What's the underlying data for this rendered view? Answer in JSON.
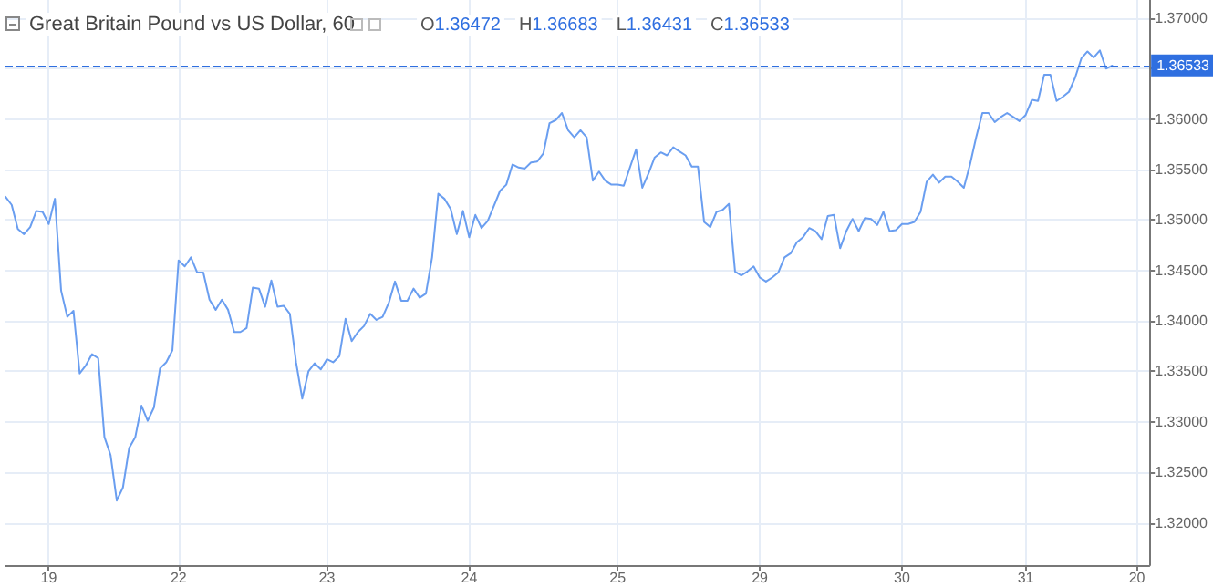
{
  "chart_data": {
    "type": "line",
    "title": "Great Britain Pound vs US Dollar, 60",
    "annotations": [
      "O1.36472",
      "H1.36683",
      "L1.36431",
      "C1.36533"
    ],
    "color": "#6a9ef0",
    "marker": "none",
    "grid": true,
    "categories": [
      null,
      null,
      null,
      null,
      null,
      null,
      null,
      "19",
      null,
      null,
      null,
      null,
      null,
      null,
      null,
      null,
      null,
      null,
      null,
      null,
      null,
      null,
      null,
      null,
      null,
      null,
      null,
      null,
      "22",
      null,
      null,
      null,
      null,
      null,
      null,
      null,
      null,
      null,
      null,
      null,
      null,
      null,
      null,
      null,
      null,
      null,
      null,
      null,
      null,
      null,
      null,
      null,
      "23",
      null,
      null,
      null,
      null,
      null,
      null,
      null,
      null,
      null,
      null,
      null,
      null,
      null,
      null,
      null,
      null,
      null,
      null,
      null,
      null,
      null,
      null,
      "24",
      null,
      null,
      null,
      null,
      null,
      null,
      null,
      null,
      null,
      null,
      null,
      null,
      null,
      null,
      null,
      null,
      null,
      null,
      null,
      null,
      null,
      null,
      null,
      "25",
      null,
      null,
      null,
      null,
      null,
      null,
      null,
      null,
      null,
      null,
      null,
      null,
      null,
      null,
      null,
      null,
      null,
      null,
      null,
      null,
      null,
      null,
      "29",
      null,
      null,
      null,
      null,
      null,
      null,
      null,
      null,
      null,
      null,
      null,
      null,
      null,
      null,
      null,
      null,
      null,
      null,
      null,
      null,
      null,
      null,
      "30",
      null,
      null,
      null,
      null,
      null,
      null,
      null,
      null,
      null,
      null,
      null,
      null,
      null,
      null,
      null,
      null,
      null,
      null,
      null,
      "31",
      null,
      null,
      null,
      null,
      null,
      null,
      null,
      null,
      null,
      null,
      null,
      null,
      null,
      null,
      null,
      null,
      null,
      "20",
      null,
      null
    ],
    "ylim": [
      1.3158,
      1.3718
    ],
    "yticks": [
      {
        "value": 1.32,
        "label": "1.32000"
      },
      {
        "value": 1.325,
        "label": "1.32500"
      },
      {
        "value": 1.33,
        "label": "1.33000"
      },
      {
        "value": 1.335,
        "label": "1.33500"
      },
      {
        "value": 1.34,
        "label": "1.34000"
      },
      {
        "value": 1.345,
        "label": "1.34500"
      },
      {
        "value": 1.35,
        "label": "1.35000"
      },
      {
        "value": 1.355,
        "label": "1.35500"
      },
      {
        "value": 1.36,
        "label": "1.36000"
      },
      {
        "value": 1.365,
        "label": null
      },
      {
        "value": 1.37,
        "label": "1.37000"
      }
    ],
    "ref_lines": [
      {
        "axis": "y",
        "value": 1.36533,
        "label": "1.36533",
        "color": "#2f6fe0",
        "line_style": "dashed"
      }
    ],
    "values": [
      1.3523,
      1.3515,
      1.3491,
      1.3486,
      1.3493,
      1.3509,
      1.3508,
      1.3496,
      1.3521,
      1.343,
      1.3404,
      1.341,
      1.3348,
      1.3356,
      1.3367,
      1.3363,
      1.3285,
      1.3267,
      1.3222,
      1.3235,
      1.3274,
      1.3285,
      1.3316,
      1.3301,
      1.3314,
      1.3353,
      1.3359,
      1.3371,
      1.346,
      1.3454,
      1.3463,
      1.3448,
      1.3448,
      1.3421,
      1.3411,
      1.3421,
      1.3411,
      1.3389,
      1.3389,
      1.3393,
      1.3433,
      1.3432,
      1.3414,
      1.344,
      1.3414,
      1.3415,
      1.3407,
      1.3359,
      1.3323,
      1.335,
      1.3358,
      1.3352,
      1.3362,
      1.3359,
      1.3365,
      1.3402,
      1.338,
      1.3389,
      1.3395,
      1.3407,
      1.3401,
      1.3404,
      1.3418,
      1.3439,
      1.342,
      1.342,
      1.3432,
      1.3423,
      1.3427,
      1.3463,
      1.3526,
      1.3521,
      1.3511,
      1.3486,
      1.3509,
      1.3483,
      1.3505,
      1.3492,
      1.3499,
      1.3514,
      1.3529,
      1.3535,
      1.3555,
      1.3552,
      1.3551,
      1.3557,
      1.3558,
      1.3566,
      1.3596,
      1.3599,
      1.3606,
      1.3589,
      1.3582,
      1.3589,
      1.3582,
      1.3539,
      1.3548,
      1.3539,
      1.3535,
      1.3535,
      1.3534,
      1.3552,
      1.357,
      1.3532,
      1.3546,
      1.3562,
      1.3567,
      1.3564,
      1.3572,
      1.3568,
      1.3564,
      1.3553,
      1.3553,
      1.3498,
      1.3493,
      1.3508,
      1.351,
      1.3516,
      1.3449,
      1.3445,
      1.3449,
      1.3454,
      1.3443,
      1.3439,
      1.3443,
      1.3448,
      1.3463,
      1.3467,
      1.3478,
      1.3483,
      1.3492,
      1.3489,
      1.3481,
      1.3504,
      1.3505,
      1.3472,
      1.3489,
      1.3501,
      1.3489,
      1.3502,
      1.3501,
      1.3495,
      1.3508,
      1.3489,
      1.349,
      1.3496,
      1.3496,
      1.3498,
      1.3508,
      1.3538,
      1.3545,
      1.3537,
      1.3543,
      1.3543,
      1.3538,
      1.3532,
      1.3555,
      1.3582,
      1.3606,
      1.3606,
      1.3597,
      1.3602,
      1.3606,
      1.3602,
      1.3598,
      1.3604,
      1.3619,
      1.3618,
      1.3644,
      1.3644,
      1.3618,
      1.3622,
      1.3627,
      1.3641,
      1.366,
      1.3667,
      1.3661,
      1.3668,
      1.365,
      1.3653,
      null,
      null,
      null,
      null,
      null,
      null
    ]
  }
}
